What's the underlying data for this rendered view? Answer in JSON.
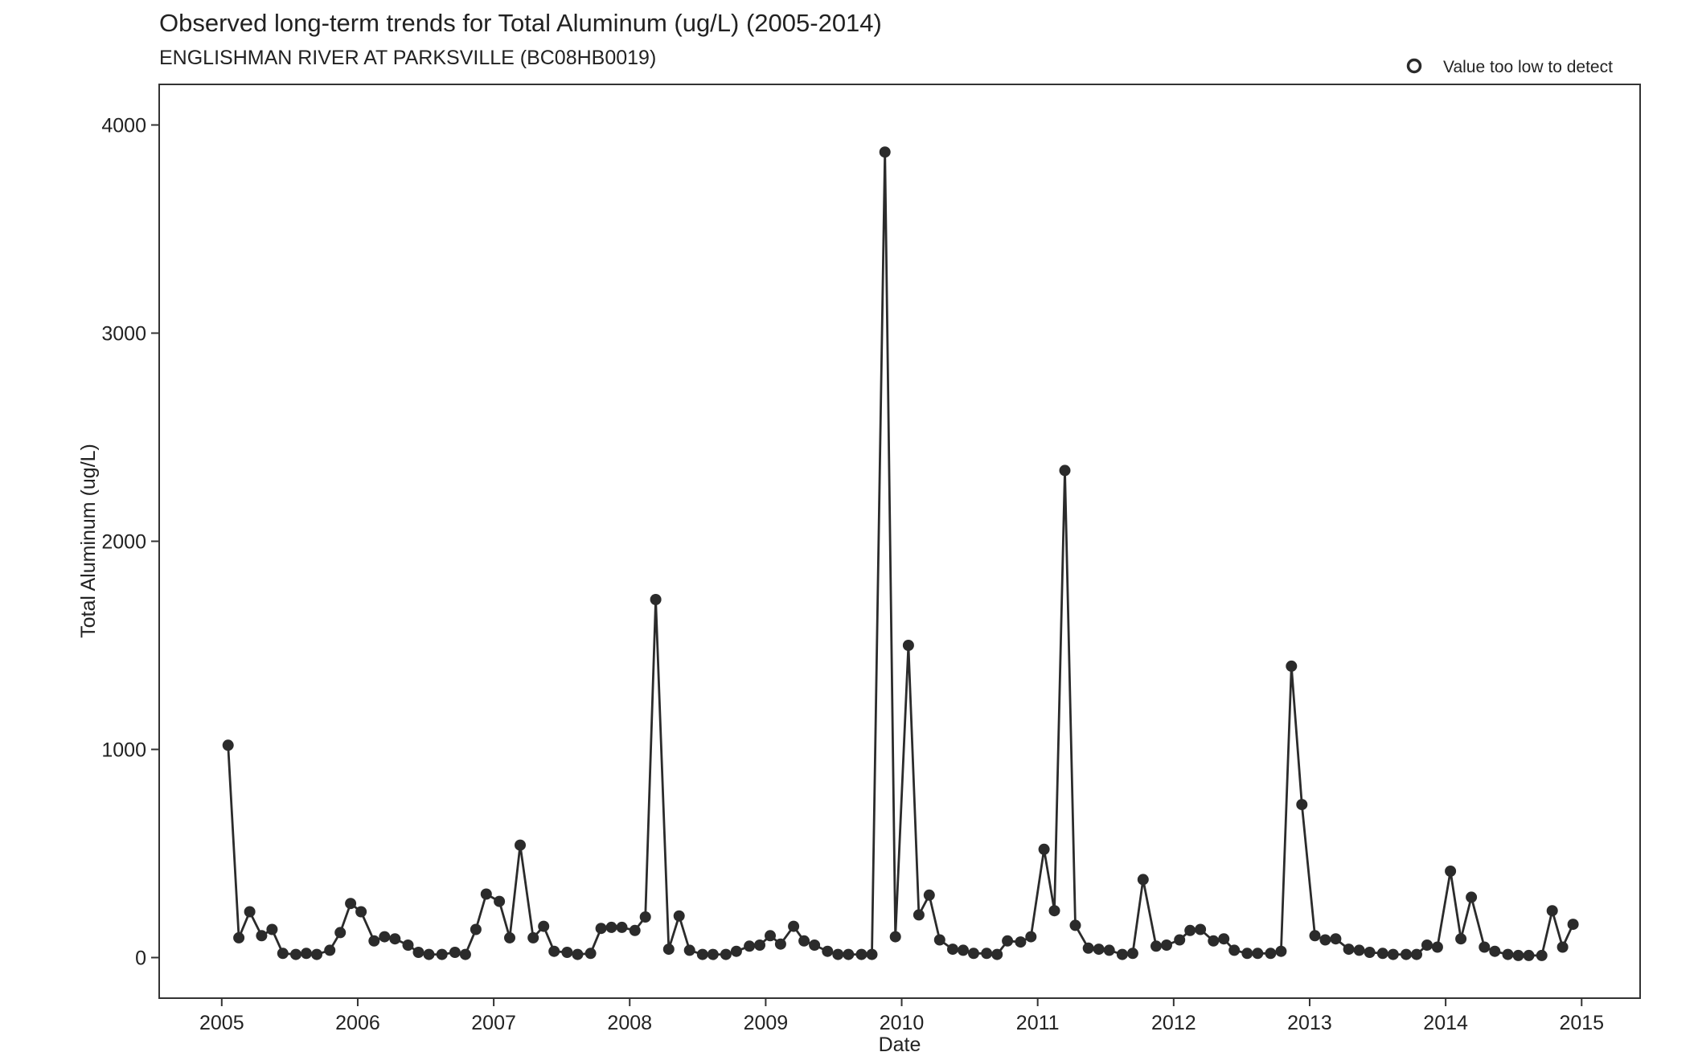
{
  "chart_data": {
    "type": "line",
    "title": "Observed long-term trends for Total Aluminum (ug/L) (2005-2014)",
    "subtitle": "ENGLISHMAN RIVER AT PARKSVILLE (BC08HB0019)",
    "xlabel": "Date",
    "ylabel": "Total Aluminum (ug/L)",
    "xlim": [
      2004.54,
      2015.43
    ],
    "ylim": [
      -195,
      4195
    ],
    "x_ticks": [
      "2005",
      "2006",
      "2007",
      "2008",
      "2009",
      "2010",
      "2011",
      "2012",
      "2013",
      "2014",
      "2015"
    ],
    "y_ticks": [
      "0",
      "1000",
      "2000",
      "3000",
      "4000"
    ],
    "grid": false,
    "legend": {
      "position": "top-right",
      "label": "Value too low to detect",
      "marker": "open-circle"
    },
    "colors": {
      "series": "#2b2b2b",
      "frame": "#333333"
    },
    "series": [
      {
        "points": [
          [
            "2005-01-18",
            1020
          ],
          [
            "2005-02-16",
            95
          ],
          [
            "2005-03-17",
            220
          ],
          [
            "2005-04-18",
            105
          ],
          [
            "2005-05-16",
            135
          ],
          [
            "2005-06-14",
            20
          ],
          [
            "2005-07-19",
            15
          ],
          [
            "2005-08-16",
            20
          ],
          [
            "2005-09-13",
            15
          ],
          [
            "2005-10-18",
            35
          ],
          [
            "2005-11-15",
            120
          ],
          [
            "2005-12-13",
            260
          ],
          [
            "2006-01-10",
            220
          ],
          [
            "2006-02-14",
            80
          ],
          [
            "2006-03-14",
            100
          ],
          [
            "2006-04-11",
            90
          ],
          [
            "2006-05-16",
            60
          ],
          [
            "2006-06-13",
            25
          ],
          [
            "2006-07-11",
            15
          ],
          [
            "2006-08-15",
            15
          ],
          [
            "2006-09-19",
            25
          ],
          [
            "2006-10-17",
            15
          ],
          [
            "2006-11-14",
            135
          ],
          [
            "2006-12-12",
            305
          ],
          [
            "2007-01-16",
            270
          ],
          [
            "2007-02-13",
            95
          ],
          [
            "2007-03-13",
            540
          ],
          [
            "2007-04-17",
            95
          ],
          [
            "2007-05-15",
            150
          ],
          [
            "2007-06-12",
            30
          ],
          [
            "2007-07-17",
            25
          ],
          [
            "2007-08-14",
            15
          ],
          [
            "2007-09-18",
            20
          ],
          [
            "2007-10-16",
            140
          ],
          [
            "2007-11-13",
            145
          ],
          [
            "2007-12-11",
            145
          ],
          [
            "2008-01-15",
            130
          ],
          [
            "2008-02-12",
            195
          ],
          [
            "2008-03-11",
            1720
          ],
          [
            "2008-04-15",
            40
          ],
          [
            "2008-05-13",
            200
          ],
          [
            "2008-06-10",
            35
          ],
          [
            "2008-07-15",
            15
          ],
          [
            "2008-08-12",
            15
          ],
          [
            "2008-09-16",
            15
          ],
          [
            "2008-10-14",
            30
          ],
          [
            "2008-11-18",
            55
          ],
          [
            "2008-12-16",
            60
          ],
          [
            "2009-01-13",
            105
          ],
          [
            "2009-02-10",
            65
          ],
          [
            "2009-03-17",
            150
          ],
          [
            "2009-04-14",
            80
          ],
          [
            "2009-05-12",
            60
          ],
          [
            "2009-06-16",
            30
          ],
          [
            "2009-07-14",
            15
          ],
          [
            "2009-08-11",
            15
          ],
          [
            "2009-09-15",
            15
          ],
          [
            "2009-10-13",
            15
          ],
          [
            "2009-11-17",
            3870
          ],
          [
            "2009-12-15",
            100
          ],
          [
            "2010-01-19",
            1500
          ],
          [
            "2010-02-16",
            205
          ],
          [
            "2010-03-16",
            300
          ],
          [
            "2010-04-13",
            85
          ],
          [
            "2010-05-18",
            40
          ],
          [
            "2010-06-15",
            35
          ],
          [
            "2010-07-13",
            20
          ],
          [
            "2010-08-17",
            20
          ],
          [
            "2010-09-14",
            15
          ],
          [
            "2010-10-12",
            80
          ],
          [
            "2010-11-16",
            75
          ],
          [
            "2010-12-14",
            100
          ],
          [
            "2011-01-18",
            520
          ],
          [
            "2011-02-15",
            225
          ],
          [
            "2011-03-15",
            2340
          ],
          [
            "2011-04-12",
            155
          ],
          [
            "2011-05-17",
            45
          ],
          [
            "2011-06-14",
            40
          ],
          [
            "2011-07-12",
            35
          ],
          [
            "2011-08-16",
            15
          ],
          [
            "2011-09-13",
            20
          ],
          [
            "2011-10-11",
            375
          ],
          [
            "2011-11-15",
            55
          ],
          [
            "2011-12-13",
            60
          ],
          [
            "2012-01-17",
            85
          ],
          [
            "2012-02-14",
            130
          ],
          [
            "2012-03-13",
            135
          ],
          [
            "2012-04-17",
            80
          ],
          [
            "2012-05-15",
            90
          ],
          [
            "2012-06-12",
            35
          ],
          [
            "2012-07-17",
            20
          ],
          [
            "2012-08-14",
            20
          ],
          [
            "2012-09-18",
            20
          ],
          [
            "2012-10-16",
            30
          ],
          [
            "2012-11-13",
            1400
          ],
          [
            "2012-12-11",
            735
          ],
          [
            "2013-01-15",
            105
          ],
          [
            "2013-02-12",
            85
          ],
          [
            "2013-03-12",
            90
          ],
          [
            "2013-04-16",
            40
          ],
          [
            "2013-05-14",
            35
          ],
          [
            "2013-06-11",
            25
          ],
          [
            "2013-07-16",
            20
          ],
          [
            "2013-08-13",
            15
          ],
          [
            "2013-09-17",
            15
          ],
          [
            "2013-10-15",
            15
          ],
          [
            "2013-11-12",
            60
          ],
          [
            "2013-12-10",
            50
          ],
          [
            "2014-01-14",
            415
          ],
          [
            "2014-02-11",
            90
          ],
          [
            "2014-03-11",
            290
          ],
          [
            "2014-04-15",
            50
          ],
          [
            "2014-05-13",
            30
          ],
          [
            "2014-06-17",
            15
          ],
          [
            "2014-07-15",
            10
          ],
          [
            "2014-08-12",
            10
          ],
          [
            "2014-09-16",
            10
          ],
          [
            "2014-10-14",
            225
          ],
          [
            "2014-11-11",
            50
          ],
          [
            "2014-12-09",
            160
          ]
        ]
      }
    ]
  }
}
